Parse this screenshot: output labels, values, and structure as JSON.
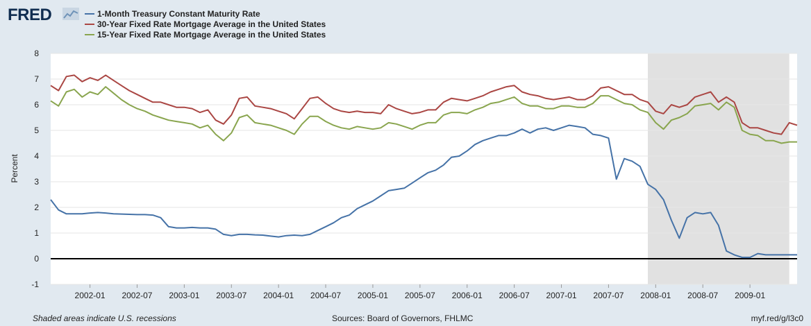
{
  "header": {
    "logo_text": "FRED",
    "logo_icon": "chart-line-icon"
  },
  "legend": [
    {
      "label": "1-Month Treasury Constant Maturity Rate",
      "color": "#4572a7"
    },
    {
      "label": "30-Year Fixed Rate Mortgage Average in the United States",
      "color": "#aa4643"
    },
    {
      "label": "15-Year Fixed Rate Mortgage Average in the United States",
      "color": "#89a54e"
    }
  ],
  "footer": {
    "left": "Shaded areas indicate U.S. recessions",
    "middle": "Sources: Board of Governors, FHLMC",
    "right": "myf.red/g/l3c0"
  },
  "chart_data": {
    "type": "line",
    "ylabel": "Percent",
    "ylim": [
      -1,
      8
    ],
    "yticks": [
      -1,
      0,
      1,
      2,
      3,
      4,
      5,
      6,
      7,
      8
    ],
    "xlim": [
      "2001-08",
      "2009-07"
    ],
    "xticks": [
      "2002-01",
      "2002-07",
      "2003-01",
      "2003-07",
      "2004-01",
      "2004-07",
      "2005-01",
      "2005-07",
      "2006-01",
      "2006-07",
      "2007-01",
      "2007-07",
      "2008-01",
      "2008-07",
      "2009-01"
    ],
    "grid": true,
    "recessions": [
      [
        "2007-12",
        "2009-06"
      ]
    ],
    "series": [
      {
        "name": "1-Month Treasury Constant Maturity Rate",
        "color": "#4572a7",
        "x": [
          "2001-08",
          "2001-09",
          "2001-10",
          "2001-11",
          "2001-12",
          "2002-01",
          "2002-02",
          "2002-03",
          "2002-04",
          "2002-05",
          "2002-06",
          "2002-07",
          "2002-08",
          "2002-09",
          "2002-10",
          "2002-11",
          "2002-12",
          "2003-01",
          "2003-02",
          "2003-03",
          "2003-04",
          "2003-05",
          "2003-06",
          "2003-07",
          "2003-08",
          "2003-09",
          "2003-10",
          "2003-11",
          "2003-12",
          "2004-01",
          "2004-02",
          "2004-03",
          "2004-04",
          "2004-05",
          "2004-06",
          "2004-07",
          "2004-08",
          "2004-09",
          "2004-10",
          "2004-11",
          "2004-12",
          "2005-01",
          "2005-02",
          "2005-03",
          "2005-04",
          "2005-05",
          "2005-06",
          "2005-07",
          "2005-08",
          "2005-09",
          "2005-10",
          "2005-11",
          "2005-12",
          "2006-01",
          "2006-02",
          "2006-03",
          "2006-04",
          "2006-05",
          "2006-06",
          "2006-07",
          "2006-08",
          "2006-09",
          "2006-10",
          "2006-11",
          "2006-12",
          "2007-01",
          "2007-02",
          "2007-03",
          "2007-04",
          "2007-05",
          "2007-06",
          "2007-07",
          "2007-08",
          "2007-09",
          "2007-10",
          "2007-11",
          "2007-12",
          "2008-01",
          "2008-02",
          "2008-03",
          "2008-04",
          "2008-05",
          "2008-06",
          "2008-07",
          "2008-08",
          "2008-09",
          "2008-10",
          "2008-11",
          "2008-12",
          "2009-01",
          "2009-02",
          "2009-03",
          "2009-04",
          "2009-05",
          "2009-06",
          "2009-07"
        ],
        "values": [
          2.3,
          1.9,
          1.75,
          1.75,
          1.75,
          1.78,
          1.8,
          1.78,
          1.75,
          1.74,
          1.73,
          1.72,
          1.72,
          1.7,
          1.6,
          1.25,
          1.2,
          1.2,
          1.22,
          1.2,
          1.2,
          1.15,
          0.95,
          0.9,
          0.95,
          0.95,
          0.93,
          0.92,
          0.88,
          0.85,
          0.9,
          0.92,
          0.9,
          0.95,
          1.1,
          1.25,
          1.4,
          1.6,
          1.7,
          1.95,
          2.1,
          2.25,
          2.45,
          2.65,
          2.7,
          2.75,
          2.95,
          3.15,
          3.35,
          3.45,
          3.65,
          3.95,
          4.0,
          4.2,
          4.45,
          4.6,
          4.7,
          4.8,
          4.8,
          4.9,
          5.05,
          4.9,
          5.05,
          5.1,
          5.0,
          5.1,
          5.2,
          5.15,
          5.1,
          4.85,
          4.8,
          4.7,
          3.1,
          3.9,
          3.8,
          3.6,
          2.9,
          2.7,
          2.3,
          1.5,
          0.8,
          1.6,
          1.8,
          1.75,
          1.8,
          1.3,
          0.3,
          0.15,
          0.05,
          0.05,
          0.2,
          0.15,
          0.15,
          0.15,
          0.15,
          0.15
        ]
      },
      {
        "name": "30-Year Fixed Rate Mortgage Average in the United States",
        "color": "#aa4643",
        "x": [
          "2001-08",
          "2001-09",
          "2001-10",
          "2001-11",
          "2001-12",
          "2002-01",
          "2002-02",
          "2002-03",
          "2002-04",
          "2002-05",
          "2002-06",
          "2002-07",
          "2002-08",
          "2002-09",
          "2002-10",
          "2002-11",
          "2002-12",
          "2003-01",
          "2003-02",
          "2003-03",
          "2003-04",
          "2003-05",
          "2003-06",
          "2003-07",
          "2003-08",
          "2003-09",
          "2003-10",
          "2003-11",
          "2003-12",
          "2004-01",
          "2004-02",
          "2004-03",
          "2004-04",
          "2004-05",
          "2004-06",
          "2004-07",
          "2004-08",
          "2004-09",
          "2004-10",
          "2004-11",
          "2004-12",
          "2005-01",
          "2005-02",
          "2005-03",
          "2005-04",
          "2005-05",
          "2005-06",
          "2005-07",
          "2005-08",
          "2005-09",
          "2005-10",
          "2005-11",
          "2005-12",
          "2006-01",
          "2006-02",
          "2006-03",
          "2006-04",
          "2006-05",
          "2006-06",
          "2006-07",
          "2006-08",
          "2006-09",
          "2006-10",
          "2006-11",
          "2006-12",
          "2007-01",
          "2007-02",
          "2007-03",
          "2007-04",
          "2007-05",
          "2007-06",
          "2007-07",
          "2007-08",
          "2007-09",
          "2007-10",
          "2007-11",
          "2007-12",
          "2008-01",
          "2008-02",
          "2008-03",
          "2008-04",
          "2008-05",
          "2008-06",
          "2008-07",
          "2008-08",
          "2008-09",
          "2008-10",
          "2008-11",
          "2008-12",
          "2009-01",
          "2009-02",
          "2009-03",
          "2009-04",
          "2009-05",
          "2009-06",
          "2009-07"
        ],
        "values": [
          6.75,
          6.55,
          7.1,
          7.15,
          6.9,
          7.05,
          6.95,
          7.15,
          6.95,
          6.75,
          6.55,
          6.4,
          6.25,
          6.1,
          6.1,
          6.0,
          5.9,
          5.9,
          5.85,
          5.7,
          5.8,
          5.4,
          5.25,
          5.6,
          6.25,
          6.3,
          5.95,
          5.9,
          5.85,
          5.75,
          5.65,
          5.45,
          5.85,
          6.25,
          6.3,
          6.05,
          5.85,
          5.75,
          5.7,
          5.75,
          5.7,
          5.7,
          5.65,
          6.0,
          5.85,
          5.75,
          5.65,
          5.7,
          5.8,
          5.8,
          6.1,
          6.25,
          6.2,
          6.15,
          6.25,
          6.35,
          6.5,
          6.6,
          6.7,
          6.75,
          6.5,
          6.4,
          6.35,
          6.25,
          6.2,
          6.25,
          6.3,
          6.2,
          6.2,
          6.35,
          6.65,
          6.7,
          6.55,
          6.4,
          6.4,
          6.2,
          6.1,
          5.75,
          5.65,
          6.0,
          5.9,
          6.0,
          6.3,
          6.4,
          6.5,
          6.1,
          6.3,
          6.1,
          5.3,
          5.1,
          5.1,
          5.0,
          4.9,
          4.85,
          5.3,
          5.2
        ]
      },
      {
        "name": "15-Year Fixed Rate Mortgage Average in the United States",
        "color": "#89a54e",
        "x": [
          "2001-08",
          "2001-09",
          "2001-10",
          "2001-11",
          "2001-12",
          "2002-01",
          "2002-02",
          "2002-03",
          "2002-04",
          "2002-05",
          "2002-06",
          "2002-07",
          "2002-08",
          "2002-09",
          "2002-10",
          "2002-11",
          "2002-12",
          "2003-01",
          "2003-02",
          "2003-03",
          "2003-04",
          "2003-05",
          "2003-06",
          "2003-07",
          "2003-08",
          "2003-09",
          "2003-10",
          "2003-11",
          "2003-12",
          "2004-01",
          "2004-02",
          "2004-03",
          "2004-04",
          "2004-05",
          "2004-06",
          "2004-07",
          "2004-08",
          "2004-09",
          "2004-10",
          "2004-11",
          "2004-12",
          "2005-01",
          "2005-02",
          "2005-03",
          "2005-04",
          "2005-05",
          "2005-06",
          "2005-07",
          "2005-08",
          "2005-09",
          "2005-10",
          "2005-11",
          "2005-12",
          "2006-01",
          "2006-02",
          "2006-03",
          "2006-04",
          "2006-05",
          "2006-06",
          "2006-07",
          "2006-08",
          "2006-09",
          "2006-10",
          "2006-11",
          "2006-12",
          "2007-01",
          "2007-02",
          "2007-03",
          "2007-04",
          "2007-05",
          "2007-06",
          "2007-07",
          "2007-08",
          "2007-09",
          "2007-10",
          "2007-11",
          "2007-12",
          "2008-01",
          "2008-02",
          "2008-03",
          "2008-04",
          "2008-05",
          "2008-06",
          "2008-07",
          "2008-08",
          "2008-09",
          "2008-10",
          "2008-11",
          "2008-12",
          "2009-01",
          "2009-02",
          "2009-03",
          "2009-04",
          "2009-05",
          "2009-06",
          "2009-07"
        ],
        "values": [
          6.15,
          5.95,
          6.5,
          6.6,
          6.3,
          6.5,
          6.4,
          6.7,
          6.45,
          6.2,
          6.0,
          5.85,
          5.75,
          5.6,
          5.5,
          5.4,
          5.35,
          5.3,
          5.25,
          5.1,
          5.2,
          4.85,
          4.6,
          4.9,
          5.5,
          5.6,
          5.3,
          5.25,
          5.2,
          5.1,
          5.0,
          4.85,
          5.25,
          5.55,
          5.55,
          5.35,
          5.2,
          5.1,
          5.05,
          5.15,
          5.1,
          5.05,
          5.1,
          5.3,
          5.25,
          5.15,
          5.05,
          5.2,
          5.3,
          5.3,
          5.6,
          5.7,
          5.7,
          5.65,
          5.8,
          5.9,
          6.05,
          6.1,
          6.2,
          6.3,
          6.05,
          5.95,
          5.95,
          5.85,
          5.85,
          5.95,
          5.95,
          5.9,
          5.9,
          6.05,
          6.35,
          6.35,
          6.2,
          6.05,
          6.0,
          5.8,
          5.7,
          5.3,
          5.05,
          5.4,
          5.5,
          5.65,
          5.95,
          6.0,
          6.05,
          5.8,
          6.1,
          5.9,
          5.0,
          4.85,
          4.8,
          4.6,
          4.6,
          4.5,
          4.55,
          4.55
        ]
      }
    ]
  }
}
